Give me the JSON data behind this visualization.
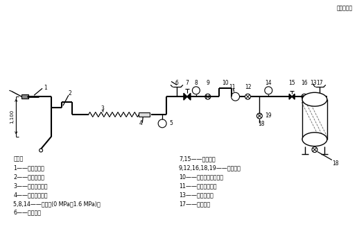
{
  "title_unit": "单位为毫米",
  "bg_color": "#ffffff",
  "lc": "#000000",
  "legend_left": [
    "说明：",
    "1——泡沫出口；",
    "2——可调支架；",
    "3——泡沫输送管；",
    "4——气液混合室；",
    "5,8,14——压力表(0 MPa～1.6 MPa)；",
    "6——进气管；"
  ],
  "legend_right": [
    "7,15——针形阀；",
    "9,12,16,18,19——球形阀；",
    "10——泡沫溶液输送管；",
    "11——液体流量计；",
    "13——耐压储罐；",
    "17——进气管。"
  ],
  "dim_label": "1,100"
}
